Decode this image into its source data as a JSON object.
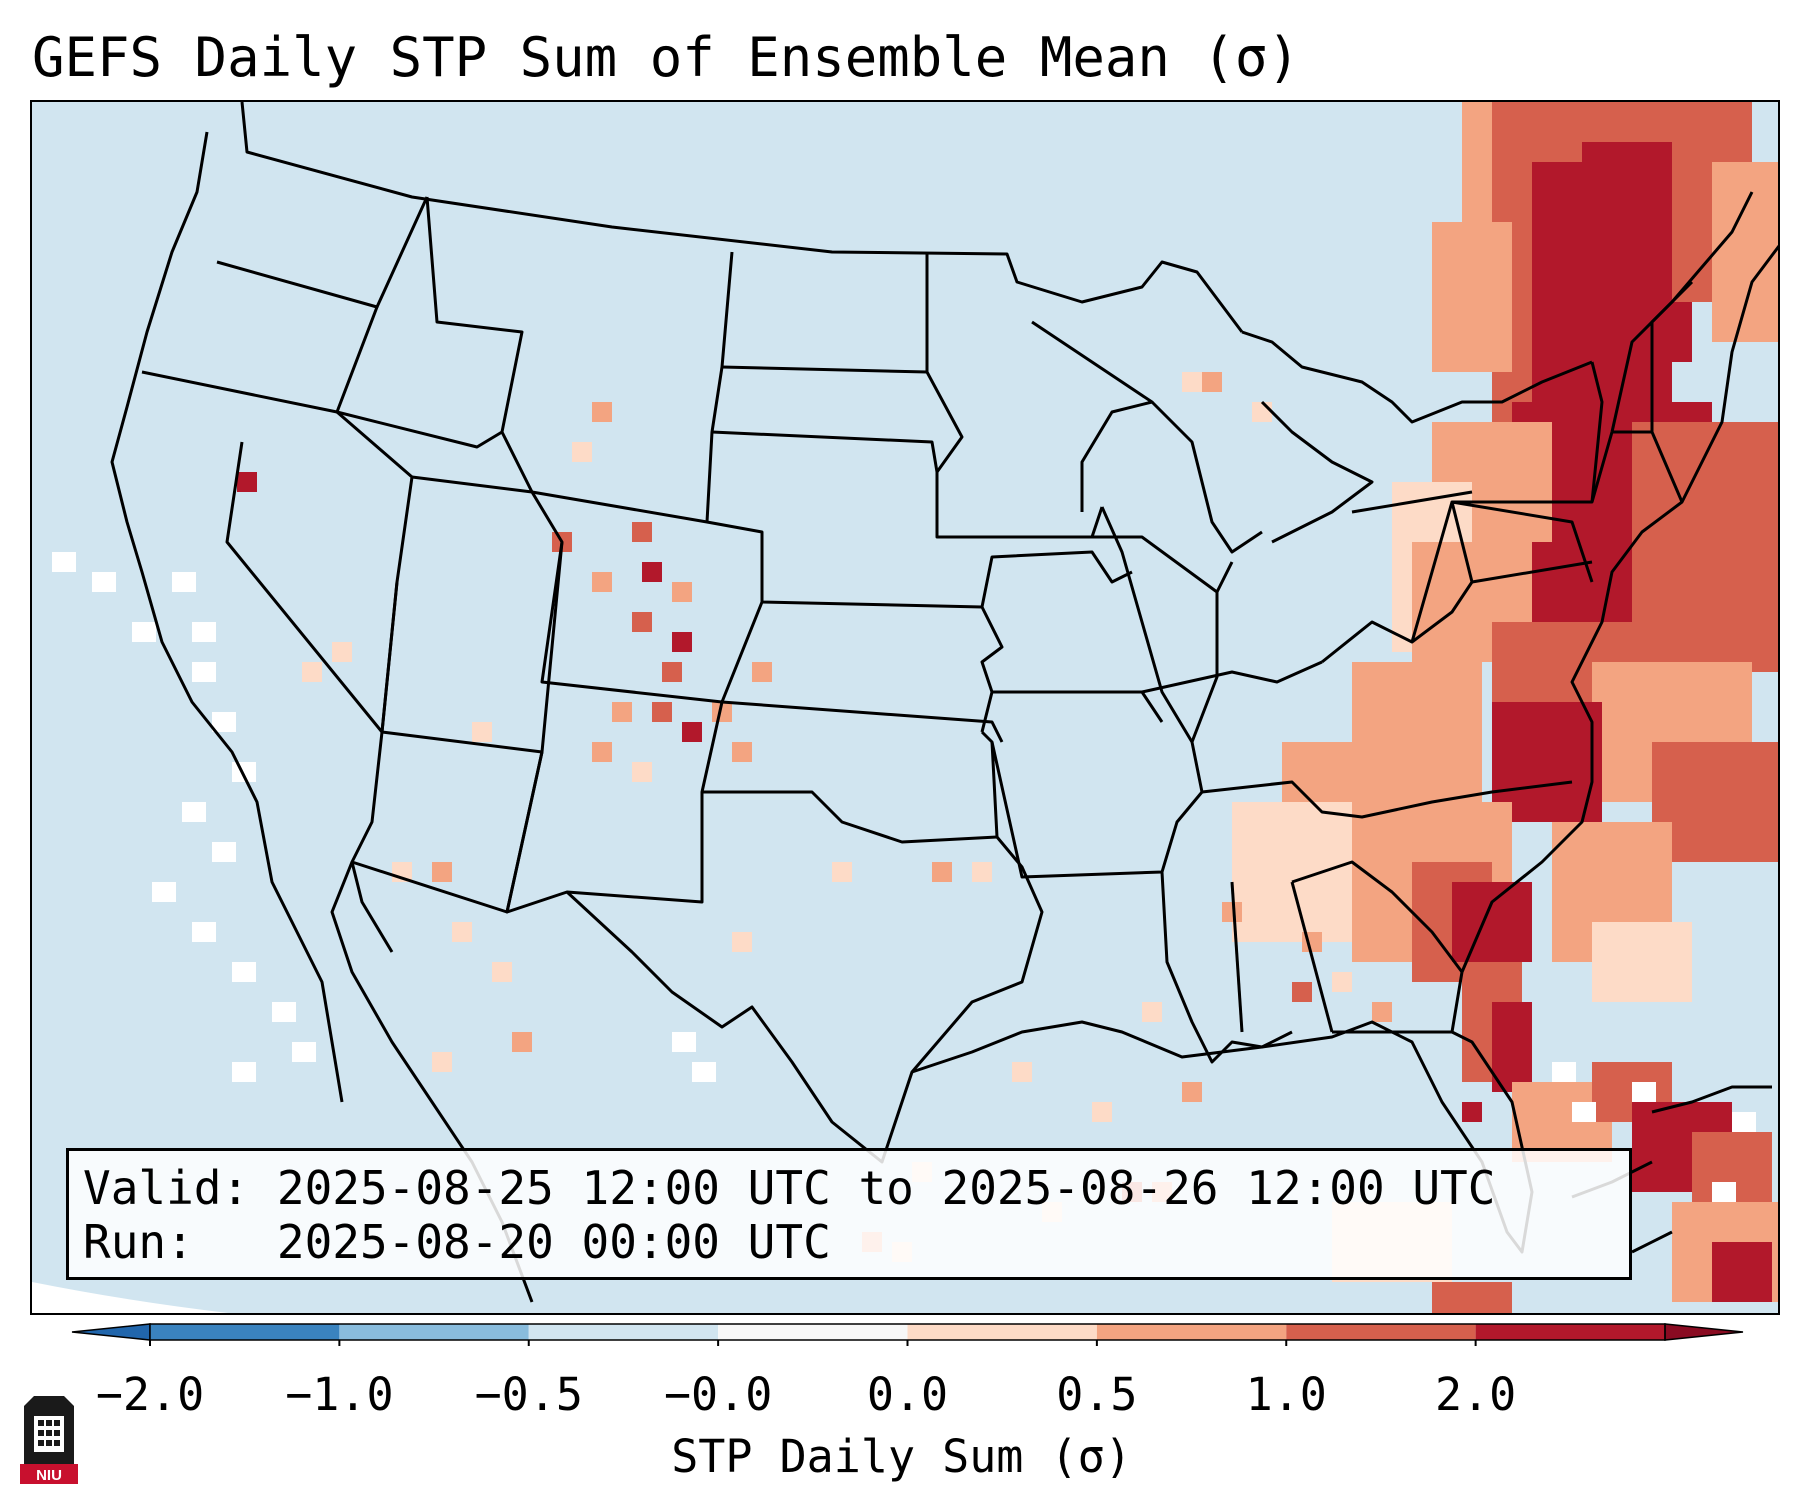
{
  "title": "GEFS Daily STP Sum of Ensemble Mean (σ)",
  "info": {
    "valid_label": "Valid:",
    "valid_value": "2025-08-25 12:00 UTC to 2025-08-26 12:00 UTC",
    "run_label": "Run:",
    "run_value": "2025-08-20 00:00 UTC"
  },
  "colorbar": {
    "label": "STP Daily Sum (σ)",
    "ticks": [
      "−2.0",
      "−1.0",
      "−0.5",
      "−0.0",
      "0.0",
      "0.5",
      "1.0",
      "2.0"
    ],
    "colors": [
      "#3a83bf",
      "#89bcdd",
      "#d1e5f0",
      "#f7f7f7",
      "#fddbc7",
      "#f3a481",
      "#d6604d",
      "#b2182b"
    ],
    "extend": "both"
  },
  "map": {
    "region": "CONUS",
    "ocean_color": "#d1e5f0",
    "field_highlights": [
      "Northeast US and offshore Atlantic: 1.0 to 2.0+",
      "Mid-Atlantic and Carolinas coast: 0.5 to 2.0",
      "Colorado and Front Range: scattered 0.0 to 2.0",
      "Pacific coast offshore: -0.0 to 0.0"
    ]
  },
  "logo": {
    "text": "NIU",
    "icon": "niu-logo-icon"
  }
}
